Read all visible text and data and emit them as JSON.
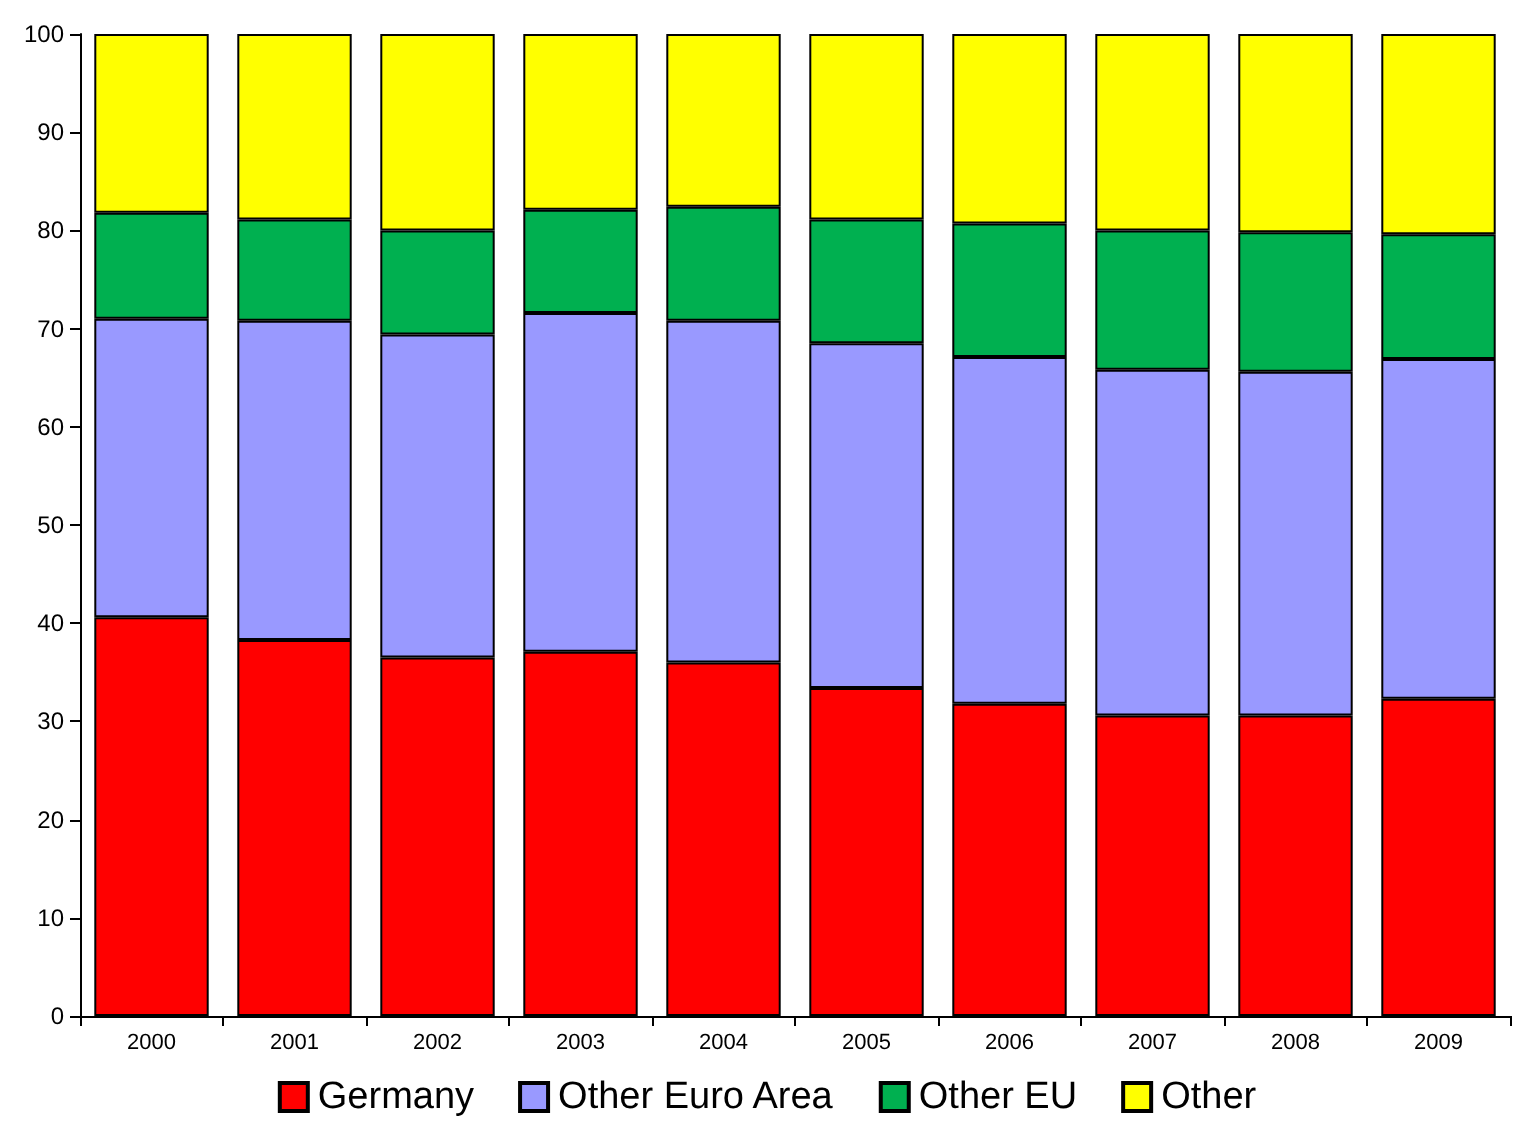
{
  "chart_data": {
    "type": "bar",
    "stacked": true,
    "categories": [
      "2000",
      "2001",
      "2002",
      "2003",
      "2004",
      "2005",
      "2006",
      "2007",
      "2008",
      "2009"
    ],
    "series": [
      {
        "name": "Germany",
        "color": "#ff0000",
        "values": [
          40.6,
          38.3,
          36.5,
          37.1,
          36.0,
          33.4,
          31.8,
          30.6,
          30.6,
          32.3
        ]
      },
      {
        "name": "Other Euro Area",
        "color": "#9999ff",
        "values": [
          30.4,
          32.5,
          32.9,
          34.5,
          34.8,
          35.1,
          35.3,
          35.2,
          35.0,
          34.6
        ]
      },
      {
        "name": "Other EU",
        "color": "#00b050",
        "values": [
          10.8,
          10.3,
          10.6,
          10.5,
          11.6,
          12.6,
          13.6,
          14.2,
          14.2,
          12.7
        ]
      },
      {
        "name": "Other",
        "color": "#ffff00",
        "values": [
          18.2,
          18.9,
          20.0,
          17.9,
          17.6,
          18.9,
          19.3,
          20.0,
          20.2,
          20.4
        ]
      }
    ],
    "ylim": [
      0,
      100
    ],
    "yticks": [
      0,
      10,
      20,
      30,
      40,
      50,
      60,
      70,
      80,
      90,
      100
    ],
    "grid": false,
    "legend": "bottom"
  }
}
